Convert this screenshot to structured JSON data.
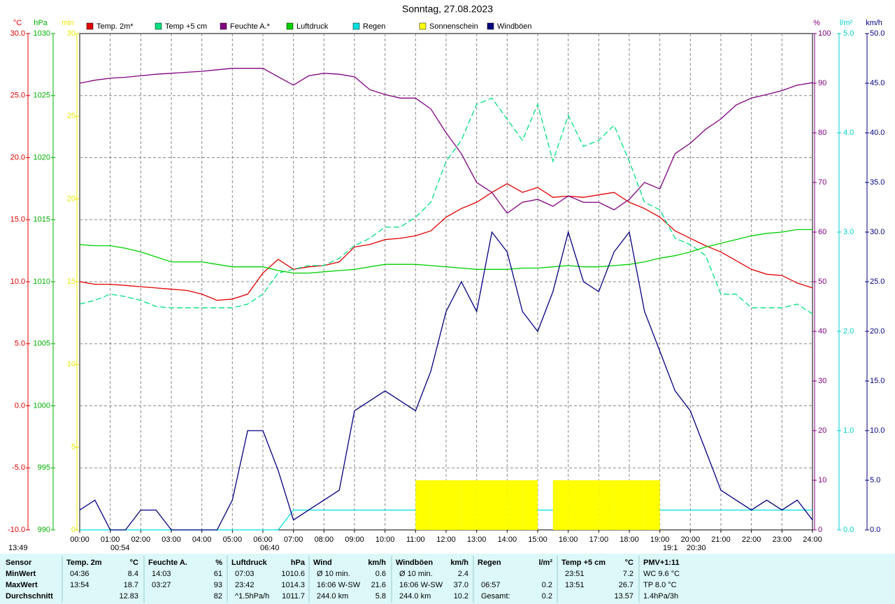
{
  "chart_data": {
    "type": "line",
    "title": "Sonntag, 27.08.2023",
    "grid": true,
    "xlim": [
      0,
      24
    ],
    "xticks": [
      {
        "value": 0,
        "label": "00:00"
      },
      {
        "value": 1,
        "label": "01:00"
      },
      {
        "value": 2,
        "label": "02:00"
      },
      {
        "value": 3,
        "label": "03:00"
      },
      {
        "value": 4,
        "label": "04:00"
      },
      {
        "value": 5,
        "label": "05:00"
      },
      {
        "value": 6,
        "label": "06:00"
      },
      {
        "value": 7,
        "label": "07:00"
      },
      {
        "value": 8,
        "label": "08:00"
      },
      {
        "value": 9,
        "label": "09:00"
      },
      {
        "value": 10,
        "label": "10:00"
      },
      {
        "value": 11,
        "label": "11:00"
      },
      {
        "value": 12,
        "label": "12:00"
      },
      {
        "value": 13,
        "label": "13:00"
      },
      {
        "value": 14,
        "label": "14:00"
      },
      {
        "value": 15,
        "label": "15:00"
      },
      {
        "value": 16,
        "label": "16:00"
      },
      {
        "value": 17,
        "label": "17:00"
      },
      {
        "value": 18,
        "label": "18:00"
      },
      {
        "value": 19,
        "label": "19:00"
      },
      {
        "value": 20,
        "label": "20:00"
      },
      {
        "value": 21,
        "label": "21:00"
      },
      {
        "value": 22,
        "label": "22:00"
      },
      {
        "value": 23,
        "label": "23:00"
      },
      {
        "value": 24,
        "label": "24:00"
      }
    ],
    "x": [
      0,
      0.5,
      1,
      1.5,
      2,
      2.5,
      3,
      3.5,
      4,
      4.5,
      5,
      5.5,
      6,
      6.5,
      7,
      7.5,
      8,
      8.5,
      9,
      9.5,
      10,
      10.5,
      11,
      11.5,
      12,
      12.5,
      13,
      13.5,
      14,
      14.5,
      15,
      15.5,
      16,
      16.5,
      17,
      17.5,
      18,
      18.5,
      19,
      19.5,
      20,
      20.5,
      21,
      21.5,
      22,
      22.5,
      23,
      23.5,
      24
    ],
    "axes": [
      {
        "label": "°C",
        "color": "#e00000",
        "lim": [
          -10,
          30
        ],
        "ticks": [
          {
            "value": -10,
            "label": "-10.0"
          },
          {
            "value": -5,
            "label": "-5.0"
          },
          {
            "value": 0,
            "label": "0.0"
          },
          {
            "value": 5,
            "label": "5.0"
          },
          {
            "value": 10,
            "label": "10.0"
          },
          {
            "value": 15,
            "label": "15.0"
          },
          {
            "value": 20,
            "label": "20.0"
          },
          {
            "value": 25,
            "label": "25.0"
          },
          {
            "value": 30,
            "label": "30.0"
          }
        ]
      },
      {
        "label": "hPa",
        "color": "#00b000",
        "lim": [
          990,
          1030
        ],
        "ticks": [
          990,
          995,
          1000,
          1005,
          1010,
          1015,
          1020,
          1025,
          1030
        ]
      },
      {
        "label": "min",
        "color": "#e8e800",
        "lim": [
          0,
          30
        ],
        "ticks": [
          0,
          5,
          10,
          15,
          20,
          25,
          30
        ]
      },
      {
        "label": "%",
        "color": "#800080",
        "lim": [
          0,
          100
        ],
        "ticks": [
          0,
          10,
          20,
          30,
          40,
          50,
          60,
          70,
          80,
          90,
          100
        ]
      },
      {
        "label": "l/m²",
        "color": "#00d0d0",
        "lim": [
          0,
          5
        ],
        "ticks": [
          {
            "value": 0,
            "label": "0.0"
          },
          {
            "value": 1,
            "label": "1.0"
          },
          {
            "value": 2,
            "label": "2.0"
          },
          {
            "value": 3,
            "label": "3.0"
          },
          {
            "value": 4,
            "label": "4.0"
          },
          {
            "value": 5,
            "label": "5.0"
          }
        ]
      },
      {
        "label": "km/h",
        "color": "#000080",
        "lim": [
          0,
          50
        ],
        "ticks": [
          {
            "value": 0,
            "label": "0.0"
          },
          {
            "value": 5,
            "label": "5.0"
          },
          {
            "value": 10,
            "label": "10.0"
          },
          {
            "value": 15,
            "label": "15.0"
          },
          {
            "value": 20,
            "label": "20.0"
          },
          {
            "value": 25,
            "label": "25.0"
          },
          {
            "value": 30,
            "label": "30.0"
          },
          {
            "value": 35,
            "label": "35.0"
          },
          {
            "value": 40,
            "label": "40.0"
          },
          {
            "value": 45,
            "label": "45.0"
          },
          {
            "value": 50,
            "label": "50.0"
          }
        ]
      }
    ],
    "series": [
      {
        "name": "Temp. 2m*",
        "color": "#e00000",
        "axis": 0,
        "values": [
          10.0,
          9.8,
          9.8,
          9.7,
          9.6,
          9.5,
          9.4,
          9.3,
          9.0,
          8.5,
          8.6,
          9.0,
          10.7,
          11.8,
          11.0,
          11.2,
          11.3,
          11.6,
          12.8,
          13.0,
          13.4,
          13.5,
          13.7,
          14.1,
          15.2,
          15.9,
          16.4,
          17.2,
          17.9,
          17.2,
          17.6,
          16.8,
          16.9,
          16.8,
          17.0,
          17.2,
          16.4,
          15.9,
          15.2,
          14.1,
          13.5,
          12.9,
          12.4,
          11.7,
          11.0,
          10.6,
          10.5,
          9.9,
          9.5
        ]
      },
      {
        "name": "Temp +5 cm",
        "color": "#00e080",
        "axis": 0,
        "dashed": true,
        "values": [
          8.2,
          8.5,
          9.0,
          8.8,
          8.5,
          8.0,
          7.9,
          7.9,
          7.9,
          7.9,
          7.9,
          8.2,
          9.0,
          10.7,
          11.0,
          11.3,
          11.3,
          11.9,
          12.9,
          13.5,
          14.4,
          14.4,
          15.2,
          16.4,
          19.7,
          21.4,
          24.3,
          24.8,
          23.1,
          21.4,
          24.3,
          19.7,
          23.4,
          20.9,
          21.4,
          22.6,
          19.7,
          16.4,
          15.8,
          13.5,
          13.0,
          12.1,
          9.0,
          9.0,
          7.9,
          7.9,
          7.9,
          8.2,
          7.4
        ]
      },
      {
        "name": "Feuchte A.*",
        "color": "#800080",
        "axis": 3,
        "values": [
          90,
          90.6,
          91,
          91.2,
          91.5,
          91.8,
          92,
          92.2,
          92.4,
          92.7,
          93,
          93,
          93,
          91.3,
          89.6,
          91.5,
          92,
          91.8,
          91.3,
          88.7,
          87.7,
          87,
          87,
          84.8,
          80,
          75.8,
          70,
          68,
          63.8,
          66,
          66.6,
          65.2,
          67.3,
          66,
          66,
          64.5,
          66.6,
          70,
          68.7,
          75.8,
          77.9,
          80.7,
          82.8,
          85.6,
          87,
          87.7,
          88.5,
          89.6,
          90.1
        ]
      },
      {
        "name": "Luftdruck",
        "color": "#00d000",
        "axis": 1,
        "values": [
          1013.0,
          1012.9,
          1012.9,
          1012.7,
          1012.4,
          1012.0,
          1011.6,
          1011.6,
          1011.6,
          1011.4,
          1011.2,
          1011.2,
          1011.2,
          1010.9,
          1010.7,
          1010.7,
          1010.8,
          1010.9,
          1011.0,
          1011.2,
          1011.4,
          1011.4,
          1011.4,
          1011.3,
          1011.2,
          1011.1,
          1011.0,
          1011.0,
          1011.0,
          1011.1,
          1011.1,
          1011.2,
          1011.3,
          1011.2,
          1011.2,
          1011.3,
          1011.4,
          1011.6,
          1011.9,
          1012.1,
          1012.4,
          1012.8,
          1013.1,
          1013.4,
          1013.7,
          1013.9,
          1014.0,
          1014.2,
          1014.2
        ]
      },
      {
        "name": "Regen",
        "color": "#00e0e0",
        "axis": 4,
        "values": [
          0,
          0,
          0,
          0,
          0,
          0,
          0,
          0,
          0,
          0,
          0,
          0,
          0,
          0,
          0.2,
          0.2,
          0.2,
          0.2,
          0.2,
          0.2,
          0.2,
          0.2,
          0.2,
          0.2,
          0.2,
          0.2,
          0.2,
          0.2,
          0.2,
          0.2,
          0.2,
          0.2,
          0.2,
          0.2,
          0.2,
          0.2,
          0.2,
          0.2,
          0.2,
          0.2,
          0.2,
          0.2,
          0.2,
          0.2,
          0.2,
          0.2,
          0.2,
          0.2,
          0.2
        ]
      },
      {
        "name": "Sonnenschein",
        "color": "#ffff00",
        "axis": 2,
        "bars": true,
        "values": [
          0,
          0,
          0,
          0,
          0,
          0,
          0,
          0,
          0,
          0,
          0,
          0,
          0,
          0,
          0,
          0,
          0,
          0,
          0,
          0,
          0,
          0,
          3,
          3,
          3,
          3,
          3,
          3,
          3,
          3,
          0,
          3,
          3,
          3,
          3,
          3,
          3,
          3,
          0,
          0,
          0,
          0,
          0,
          0,
          0,
          0,
          0,
          0,
          0
        ]
      },
      {
        "name": "Windböen",
        "color": "#000080",
        "axis": 5,
        "values": [
          2,
          3,
          0,
          0,
          2,
          2,
          0,
          0,
          0,
          0,
          3,
          10,
          10,
          6,
          1,
          2,
          3,
          4,
          12,
          13,
          14,
          13,
          12,
          16,
          22,
          25,
          22,
          30,
          28,
          22,
          20,
          24,
          30,
          25,
          24,
          28,
          30,
          22,
          18,
          14,
          12,
          8,
          4,
          3,
          2,
          3,
          2,
          3,
          1
        ]
      }
    ],
    "annotations": [
      "13:49",
      "00:54",
      "06:40",
      "19:1",
      "20:30"
    ]
  },
  "table": {
    "header": [
      "Sensor",
      "Temp. 2m",
      "°C",
      "Feuchte A.",
      "%",
      "Luftdruck",
      "hPa",
      "Wind",
      "km/h",
      "Windböen",
      "km/h",
      "Regen",
      "l/m²",
      "Temp +5 cm",
      "°C",
      "PMV+1:11"
    ],
    "rows": [
      [
        "MinWert",
        "04:36",
        "8.4",
        "14:03",
        "61",
        "07:03",
        "1010.6",
        "Ø 10 min.",
        "0.6",
        "Ø 10 min.",
        "2.4",
        null,
        null,
        "23:51",
        "7.2",
        "WC 9.6 °C"
      ],
      [
        "MaxWert",
        "13:54",
        "18.7",
        "03:27",
        "93",
        "23:42",
        "1014.3",
        "16:06   W-SW",
        "21.6",
        "16:06   W-SW",
        "37.0",
        "06:57",
        "0.2",
        "13:51",
        "26.7",
        "TP 8.0 °C"
      ],
      [
        "Durchschnitt",
        null,
        "12.83",
        null,
        "82",
        "^1.5hPa/h",
        "1011.7",
        "244.0 km",
        "5.8",
        "244.0 km",
        "10.2",
        "Gesamt:",
        "0.2",
        null,
        "13.57",
        "1.4hPa/3h"
      ]
    ]
  }
}
